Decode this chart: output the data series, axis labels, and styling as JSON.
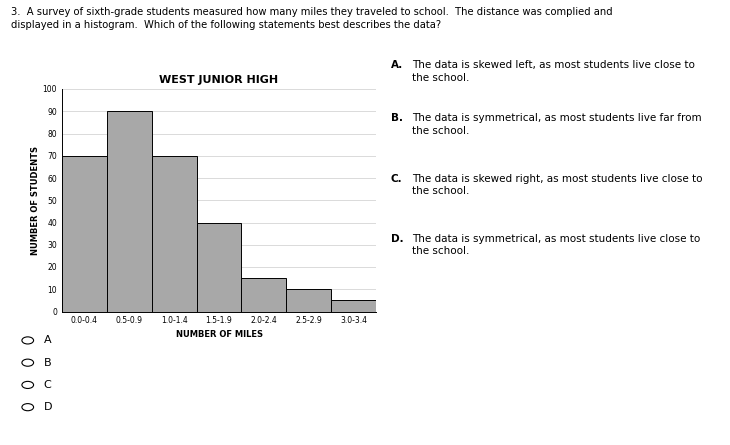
{
  "title": "WEST JUNIOR HIGH",
  "xlabel": "NUMBER OF MILES",
  "ylabel": "NUMBER OF STUDENTS",
  "categories": [
    "0.0-0.4",
    "0.5-0.9",
    "1.0-1.4",
    "1.5-1.9",
    "2.0-2.4",
    "2.5-2.9",
    "3.0-3.4"
  ],
  "values": [
    70,
    90,
    70,
    40,
    15,
    10,
    5
  ],
  "ylim": [
    0,
    100
  ],
  "yticks": [
    0,
    10,
    20,
    30,
    40,
    50,
    60,
    70,
    80,
    90,
    100
  ],
  "bar_color": "#a8a8a8",
  "bar_edgecolor": "#000000",
  "background_color": "#ffffff",
  "title_fontsize": 8,
  "axis_label_fontsize": 6,
  "tick_fontsize": 5.5,
  "question_text": "3.  A survey of sixth-grade students measured how many miles they traveled to school.  The distance was complied and\ndisplayed in a histogram.  Which of the following statements best describes the data?",
  "answer_labels": [
    "A.",
    "B.",
    "C.",
    "D."
  ],
  "answer_bodies": [
    "The data is skewed left, as most students live close to\nthe school.",
    "The data is symmetrical, as most students live far from\nthe school.",
    "The data is skewed right, as most students live close to\nthe school.",
    "The data is symmetrical, as most students live close to\nthe school."
  ],
  "options": [
    "A",
    "B",
    "C",
    "D"
  ]
}
